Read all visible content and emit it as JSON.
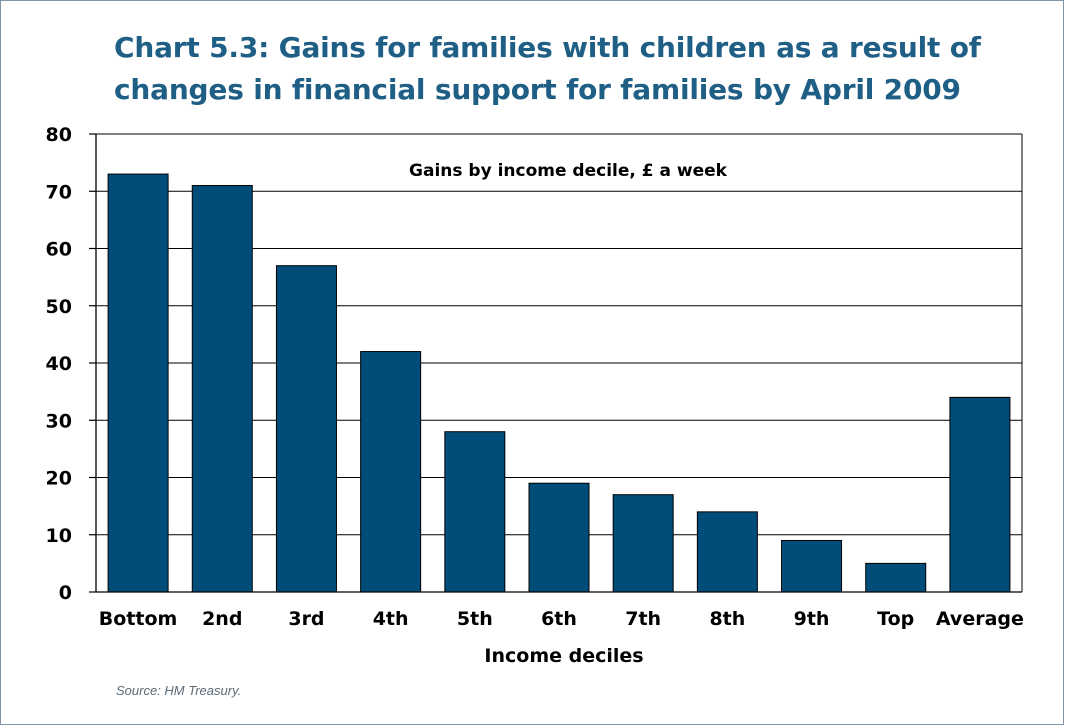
{
  "title": {
    "line1": "Chart 5.3: Gains for families with children as a result of",
    "line2": "changes in financial support for families by April 2009"
  },
  "source": "Source: HM Treasury.",
  "colors": {
    "bar": "#004d7a",
    "title": "#1f5f86",
    "grid": "#000000"
  },
  "chart_data": {
    "type": "bar",
    "title": "Chart 5.3: Gains for families with children as a result of changes in financial support for families by April 2009",
    "subtitle": "Gains by income decile, £ a week",
    "xlabel": "Income deciles",
    "ylabel": "",
    "categories": [
      "Bottom",
      "2nd",
      "3rd",
      "4th",
      "5th",
      "6th",
      "7th",
      "8th",
      "9th",
      "Top",
      "Average"
    ],
    "values": [
      73,
      71,
      57,
      42,
      28,
      19,
      17,
      14,
      9,
      5,
      34
    ],
    "ylim": [
      0,
      80
    ],
    "yticks": [
      "0",
      "10",
      "20",
      "30",
      "40",
      "50",
      "60",
      "70",
      "80"
    ],
    "grid": true,
    "legend": "none"
  }
}
